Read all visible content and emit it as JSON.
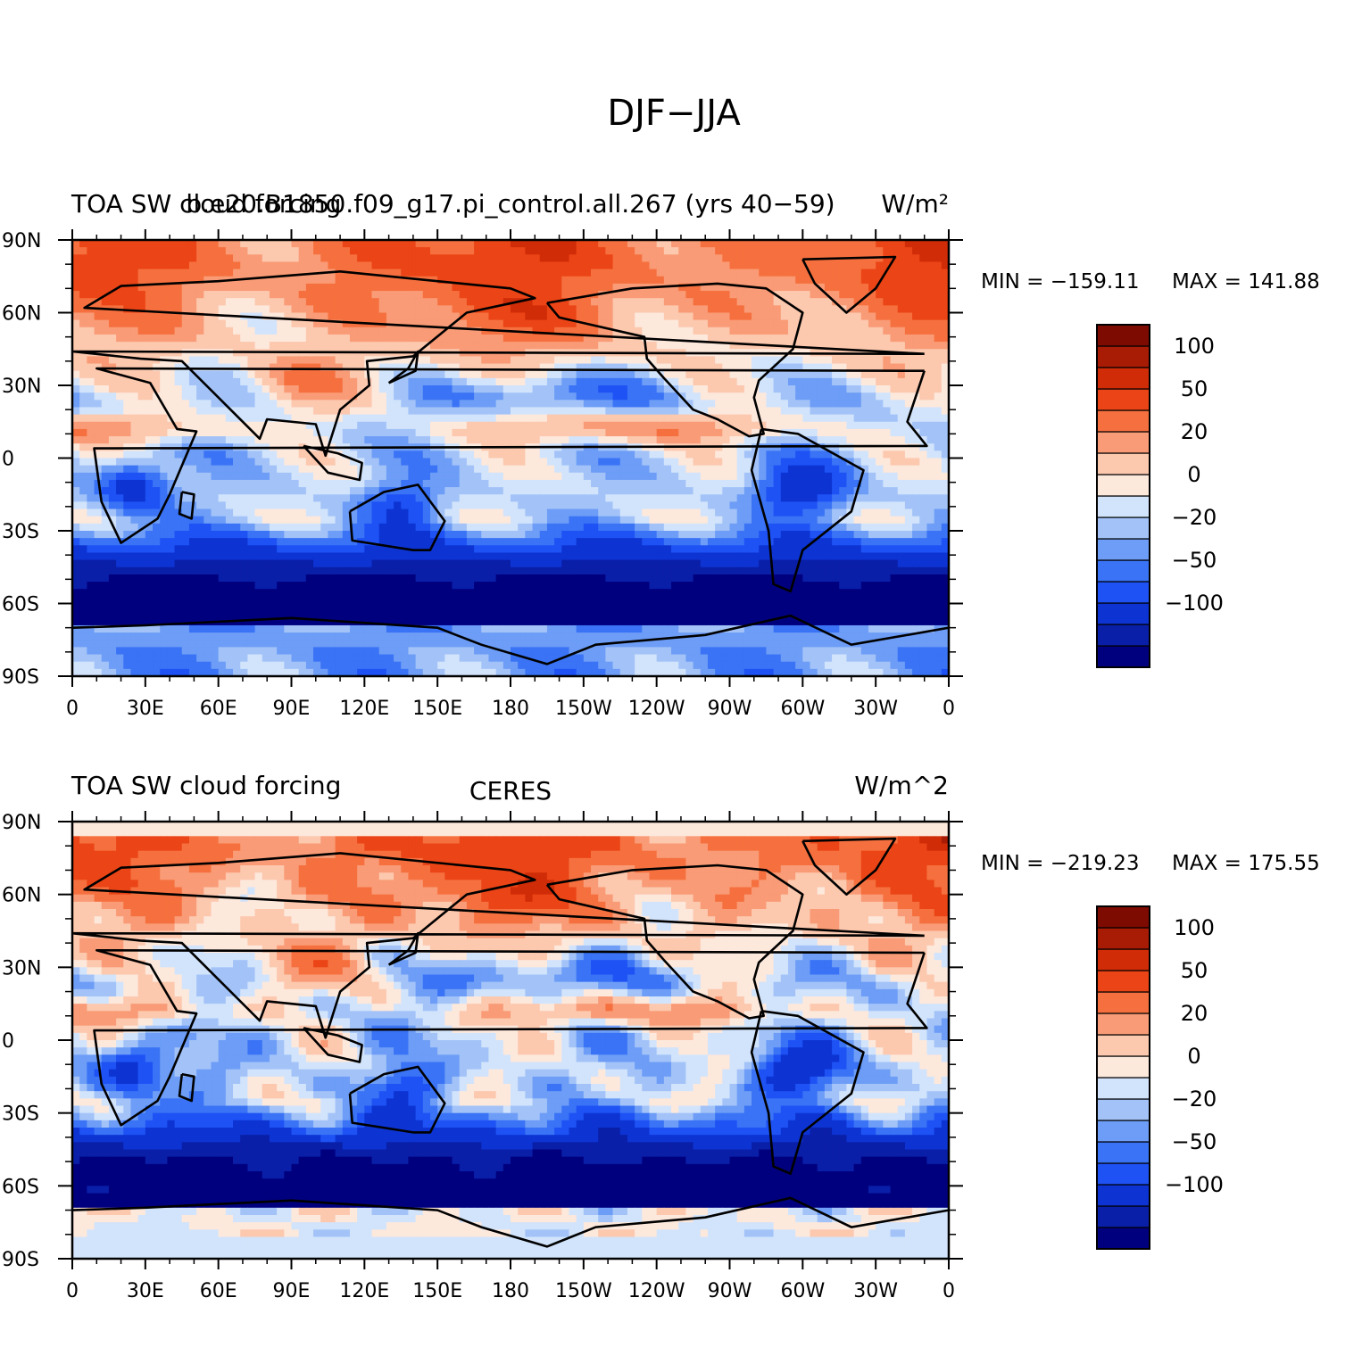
{
  "figure": {
    "title": "DJF−JJA"
  },
  "colorbar": {
    "colors": [
      "#00007f",
      "#0a1fa8",
      "#0d34d2",
      "#1e52f5",
      "#3a73f5",
      "#6d9df6",
      "#a3c3f8",
      "#d2e4fb",
      "#fde8dc",
      "#fcc8ae",
      "#f99b76",
      "#f6703f",
      "#eb4416",
      "#d02c08",
      "#a81b05",
      "#7d0b02"
    ],
    "labels": [
      "−100",
      "−50",
      "−20",
      "0",
      "20",
      "50",
      "100"
    ]
  },
  "x_tick_labels": [
    "0",
    "30E",
    "60E",
    "90E",
    "120E",
    "150E",
    "180",
    "150W",
    "120W",
    "90W",
    "60W",
    "30W",
    "0"
  ],
  "y_tick_labels": [
    "90N",
    "60N",
    "30N",
    "0",
    "30S",
    "60S",
    "90S"
  ],
  "chart_data": [
    {
      "type": "heatmap",
      "title_left": "TOA SW cloud forcing",
      "title_center": "b.e20.B1850.f09_g17.pi_control.all.267 (yrs 40−59)",
      "title_right": "W/m²",
      "min_label": "MIN = −159.11",
      "max_label": "MAX = 141.88",
      "min": -159.11,
      "max": 141.88,
      "xlim": [
        0,
        360
      ],
      "ylim": [
        -90,
        90
      ]
    },
    {
      "type": "heatmap",
      "title_left": "TOA SW cloud forcing",
      "title_center": "CERES",
      "title_right": "W/m^2",
      "min_label": "MIN = −219.23",
      "max_label": "MAX = 175.55",
      "min": -219.23,
      "max": 175.55,
      "xlim": [
        0,
        360
      ],
      "ylim": [
        -90,
        90
      ]
    }
  ]
}
